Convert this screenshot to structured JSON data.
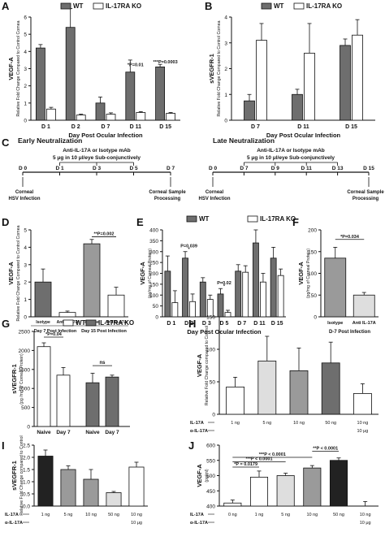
{
  "colors": {
    "dark": "#6e6e6e",
    "mid": "#9a9a9a",
    "light": "#dedede",
    "black": "#222222",
    "white": "#ffffff",
    "line": "#111111"
  },
  "schematic": {
    "letter": "C",
    "early": {
      "title": "Early Neutralization",
      "mab_line1": "Anti-IL-17A or Isotype mAb",
      "mab_line2": "5 μg in 10 μl/eye Sub-conjunctively",
      "days": [
        "D 0",
        "D 1",
        "D 3",
        "D 5",
        "D 7"
      ],
      "left_caption": [
        "Corneal",
        "HSV Infection"
      ],
      "right_caption": [
        "Corneal Sample",
        "Processing"
      ]
    },
    "late": {
      "title": "Late Neutralization",
      "mab_line1": "Anti-IL-17A or Isotype mAb",
      "mab_line2": "5 μg in 10 μl/eye Sub-conjunctively",
      "days": [
        "D 0",
        "D 7",
        "D 9",
        "D 11",
        "D 13",
        "D 15"
      ],
      "left_caption": [
        "Corneal",
        "HSV Infection"
      ],
      "right_caption": [
        "Corneal Sample",
        "Processing"
      ]
    }
  },
  "chart_data": [
    {
      "panel": "A",
      "type": "bar",
      "categories": [
        "D 1",
        "D 2",
        "D 7",
        "D 11",
        "D 15"
      ],
      "series": [
        {
          "name": "WT",
          "values": [
            4.2,
            5.4,
            1.0,
            2.8,
            3.1
          ],
          "errors": [
            0.2,
            1.1,
            0.35,
            0.7,
            0.15
          ]
        },
        {
          "name": "IL-17RA KO",
          "values": [
            0.65,
            0.3,
            0.35,
            0.45,
            0.4
          ],
          "errors": [
            0.1,
            0.05,
            0.08,
            0.05,
            0.05
          ]
        }
      ],
      "ylim": [
        0,
        6
      ],
      "yticks": [
        0,
        1,
        2,
        3,
        4,
        5,
        6
      ],
      "ylabel": "VEGF-A",
      "ylabel2": "Relative Fold Change Compared to Control Cornea",
      "xlabel": "Day Post Ocular Infection",
      "annotations": [
        {
          "text": "*P=0.01",
          "cat": 3,
          "y": 3.15
        },
        {
          "text": "***P=0.0003",
          "cat": 4,
          "y": 3.3
        }
      ]
    },
    {
      "panel": "B",
      "type": "bar",
      "categories": [
        "D 7",
        "D 11",
        "D 15"
      ],
      "series": [
        {
          "name": "WT",
          "values": [
            0.75,
            1.0,
            2.9
          ],
          "errors": [
            0.25,
            0.2,
            0.25
          ]
        },
        {
          "name": "IL-17RA KO",
          "values": [
            3.1,
            2.6,
            3.3
          ],
          "errors": [
            0.65,
            1.15,
            0.6
          ]
        }
      ],
      "ylim": [
        0,
        4
      ],
      "yticks": [
        0,
        1,
        2,
        3,
        4
      ],
      "ylabel": "sVEGFR-1",
      "ylabel2": "Relative Fold Change Compared to Control Cornea",
      "xlabel": "Day Post Ocular Infection"
    },
    {
      "panel": "D",
      "type": "bar",
      "categories": [
        "Isotype",
        "Anti-IL-17A",
        "Isotype",
        "Anti-IL-17A"
      ],
      "groups": [
        "Day 7 Post Infection",
        "Day 15 Post Infection"
      ],
      "values": [
        2.0,
        0.25,
        4.2,
        1.25
      ],
      "errors": [
        0.75,
        0.08,
        0.25,
        0.45
      ],
      "ylim": [
        0,
        5
      ],
      "yticks": [
        0,
        1,
        2,
        3,
        4,
        5
      ],
      "ylabel": "VEGF-A",
      "ylabel2": "Relative Fold Change Compared to Control Cornea",
      "annotations": [
        {
          "text": "**P=0.002",
          "y": 4.6
        }
      ]
    },
    {
      "panel": "E",
      "type": "bar",
      "categories": [
        "D 1",
        "D 2",
        "D 3",
        "D 5",
        "D 7",
        "D 11",
        "D 15"
      ],
      "series": [
        {
          "name": "WT",
          "values": [
            210,
            270,
            160,
            105,
            210,
            340,
            270
          ],
          "errors": [
            70,
            30,
            20,
            25,
            30,
            60,
            50
          ]
        },
        {
          "name": "IL-17RA KO",
          "values": [
            65,
            70,
            80,
            20,
            205,
            160,
            190
          ],
          "errors": [
            55,
            35,
            20,
            10,
            30,
            40,
            30
          ]
        }
      ],
      "ylim": [
        0,
        400
      ],
      "yticks": [
        0,
        50,
        100,
        150,
        200,
        250,
        300,
        350,
        400
      ],
      "ylabel": "VEGF-A",
      "ylabel2": "(pg/mg of Corneal Protein)",
      "xlabel": "Day Post Ocular Infection",
      "annotations": [
        {
          "text": "P=0.039",
          "cat": 1,
          "y": 320
        },
        {
          "text": "*",
          "cat": 1,
          "y": 305
        },
        {
          "text": "P=0.02",
          "cat": 3,
          "y": 150
        },
        {
          "text": "*",
          "cat": 3,
          "y": 135
        }
      ]
    },
    {
      "panel": "F",
      "type": "bar",
      "categories": [
        "Isotype",
        "Anti IL-17A"
      ],
      "values": [
        135,
        50
      ],
      "errors": [
        25,
        6
      ],
      "ylim": [
        0,
        200
      ],
      "yticks": [
        0,
        50,
        100,
        150,
        200
      ],
      "ylabel": "VEGF-A",
      "ylabel2": "(pg/mg of Corneal Protein)",
      "xlabel": "D-7 Post Infection",
      "annotations": [
        {
          "text": "*P=0.034",
          "y": 178
        }
      ]
    },
    {
      "panel": "G",
      "type": "bar",
      "categories": [
        "Naive",
        "Day 7",
        "Naive",
        "Day 7"
      ],
      "groups": [
        "WT",
        "IL-17RA KO"
      ],
      "series": [
        {
          "name": "WT"
        },
        {
          "name": "IL-17RA KO"
        }
      ],
      "values": [
        2100,
        1350,
        1150,
        1300
      ],
      "errors": [
        100,
        200,
        250,
        50
      ],
      "ylim": [
        0,
        2500
      ],
      "yticks": [
        0,
        500,
        1000,
        1500,
        2000,
        2500
      ],
      "ylabel": "sVEGFR-1",
      "ylabel2": "(pg /mg of Corneal Protein)",
      "annotations": [
        {
          "text": "*P=0.04",
          "y": 2350
        },
        {
          "text": "ns",
          "y": 1600
        }
      ]
    },
    {
      "panel": "H",
      "type": "bar",
      "values": [
        42,
        82,
        67,
        79,
        32
      ],
      "errors": [
        15,
        38,
        35,
        32,
        15
      ],
      "ylim": [
        0,
        150
      ],
      "yticks": [
        0,
        50,
        100,
        150
      ],
      "ylabel": "VEGF-A",
      "ylabel2": "Relative Fold Change compared to Control",
      "row1_label": "IL-17A",
      "row1_values": [
        "1 ng",
        "5 ng",
        "10 ng",
        "50 ng",
        "10 ng"
      ],
      "row2_label": "α-IL-17A",
      "row2_values": [
        "",
        "",
        "",
        "",
        "10 μg"
      ]
    },
    {
      "panel": "I",
      "type": "bar",
      "values": [
        2.05,
        1.5,
        1.1,
        0.55,
        1.6
      ],
      "errors": [
        0.25,
        0.15,
        0.4,
        0.05,
        0.2
      ],
      "ylim": [
        0,
        2.5
      ],
      "yticks": [
        0,
        0.5,
        1.0,
        1.5,
        2.0,
        2.5
      ],
      "ylabel": "sVEGFR-1",
      "ylabel2": "Relative Fold Change compared to Control",
      "row1_label": "IL-17A",
      "row1_values": [
        "1 ng",
        "5 ng",
        "10 ng",
        "50 ng",
        "10 ng"
      ],
      "row2_label": "α-IL-17A",
      "row2_values": [
        "",
        "",
        "",
        "",
        "10 μg"
      ]
    },
    {
      "panel": "J",
      "type": "bar",
      "values": [
        410,
        495,
        500,
        525,
        550,
        400
      ],
      "errors": [
        10,
        20,
        8,
        8,
        8,
        15
      ],
      "ylim": [
        400,
        600
      ],
      "yticks": [
        400,
        450,
        500,
        550,
        600
      ],
      "ylabel": "VEGF-A",
      "ylabel2": "(pg/ml)",
      "row1_label": "IL-17A",
      "row1_values": [
        "0 ng",
        "1 ng",
        "5 ng",
        "10 ng",
        "50 ng",
        "10 ng"
      ],
      "row2_label": "α-IL-17A",
      "row2_values": [
        "",
        "",
        "",
        "",
        "",
        "10 μg"
      ],
      "annotations": [
        {
          "text": "*P = 0.0179",
          "y": 528
        },
        {
          "text": "***P < 0.0001",
          "y": 545
        },
        {
          "text": "***P < 0.0001",
          "y": 560
        },
        {
          "text": "**P < 0.0001",
          "y": 580
        }
      ]
    }
  ]
}
